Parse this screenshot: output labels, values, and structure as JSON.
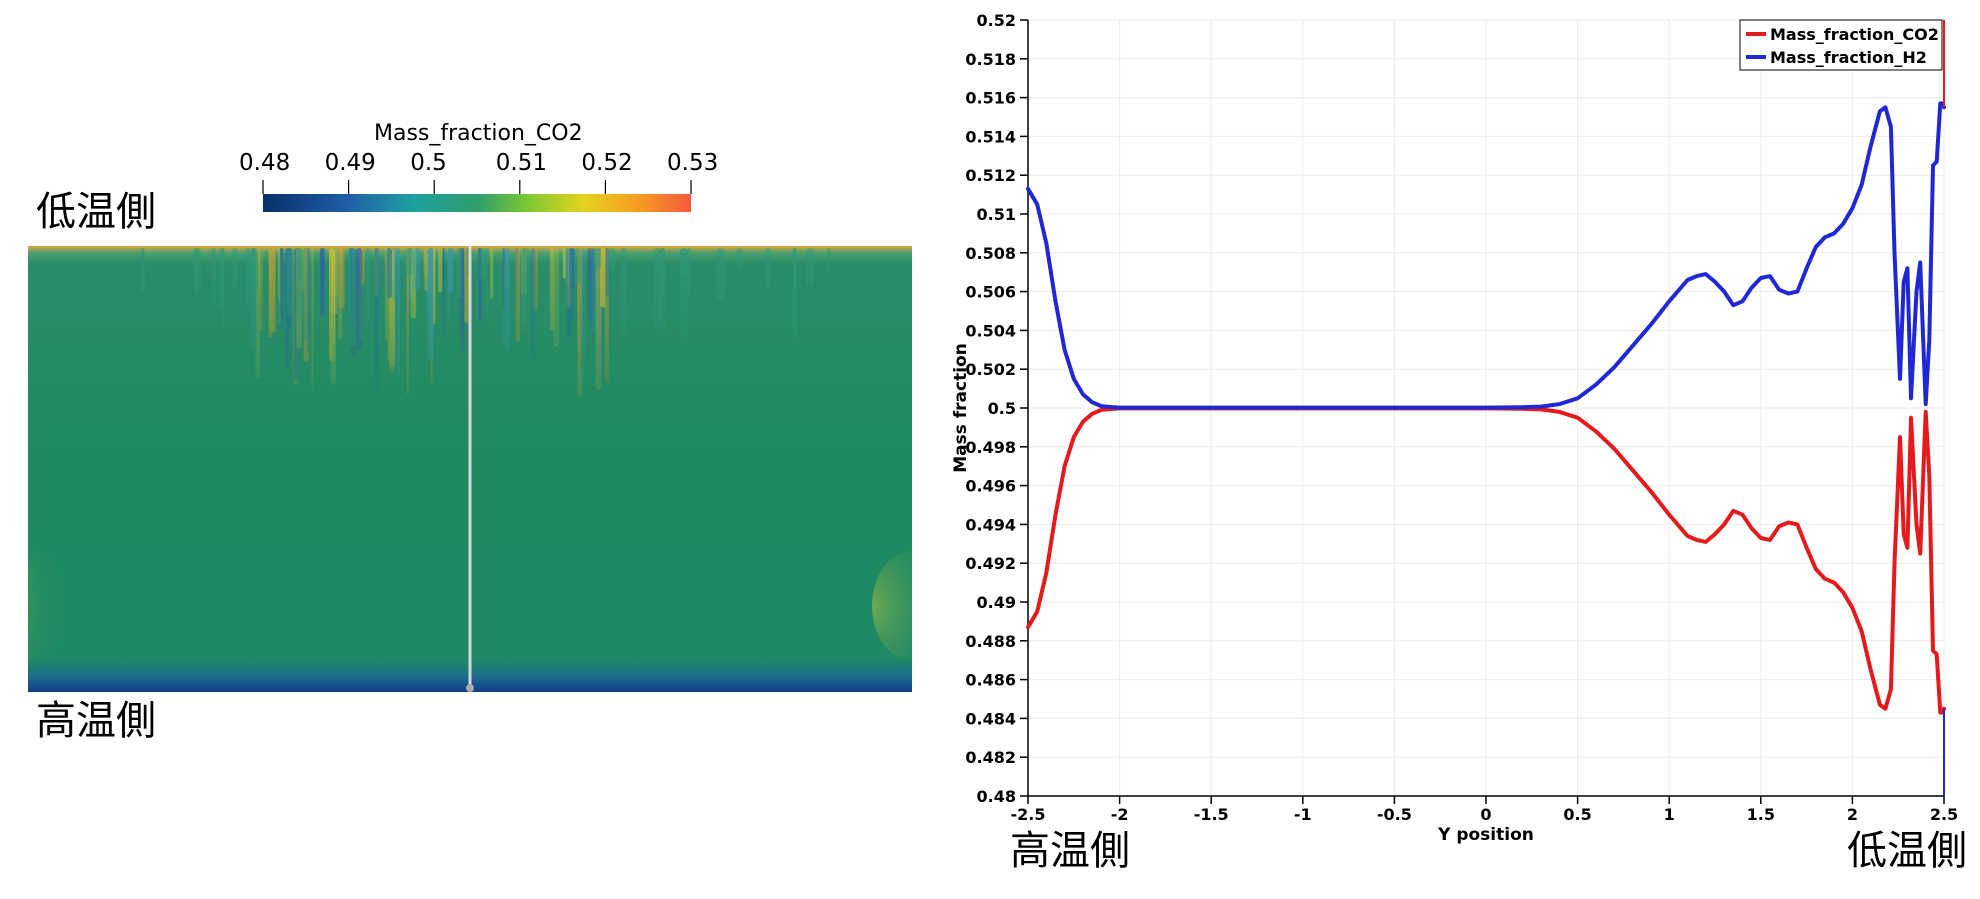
{
  "left_panel": {
    "colorbar": {
      "title": "Mass_fraction_CO2",
      "ticks": [
        "0.48",
        "0.49",
        "0.5",
        "0.51",
        "0.52",
        "0.53"
      ],
      "range": [
        0.48,
        0.53
      ],
      "colormap": [
        "#08306b",
        "#1f5fa8",
        "#1fa0a0",
        "#2e9e6a",
        "#7ec832",
        "#e6d21e",
        "#f5a020",
        "#f55a3c"
      ]
    },
    "top_label": "低温側",
    "bottom_label": "高温側",
    "colors": {
      "field": "#1e8a5e",
      "top_edge": "#e8a23a",
      "bottom_edge": "#1b3f8a",
      "probe_line": "#d8d8d8"
    }
  },
  "right_panel": {
    "left_label": "高温側",
    "right_label": "低温側"
  },
  "chart_data": {
    "type": "line",
    "xlabel": "Y position",
    "ylabel": "Mass fraction",
    "xlim": [
      -2.5,
      2.5
    ],
    "ylim": [
      0.48,
      0.52
    ],
    "xticks": [
      "-2.5",
      "-2",
      "-1.5",
      "-1",
      "-0.5",
      "0",
      "0.5",
      "1",
      "1.5",
      "2",
      "2.5"
    ],
    "yticks": [
      "0.48",
      "0.482",
      "0.484",
      "0.486",
      "0.488",
      "0.49",
      "0.492",
      "0.494",
      "0.496",
      "0.498",
      "0.5",
      "0.502",
      "0.504",
      "0.506",
      "0.508",
      "0.51",
      "0.512",
      "0.514",
      "0.516",
      "0.518",
      "0.52"
    ],
    "grid": true,
    "legend_position": "top-right",
    "series": [
      {
        "name": "Mass_fraction_CO2",
        "color": "#e41a1c",
        "x": [
          -2.5,
          -2.45,
          -2.4,
          -2.35,
          -2.3,
          -2.25,
          -2.2,
          -2.15,
          -2.1,
          -2.05,
          -2.0,
          -1.9,
          -1.5,
          -1.0,
          -0.5,
          0.0,
          0.2,
          0.3,
          0.4,
          0.5,
          0.6,
          0.7,
          0.8,
          0.9,
          1.0,
          1.1,
          1.15,
          1.2,
          1.25,
          1.3,
          1.35,
          1.4,
          1.45,
          1.5,
          1.55,
          1.6,
          1.65,
          1.7,
          1.75,
          1.8,
          1.85,
          1.9,
          1.95,
          2.0,
          2.05,
          2.1,
          2.15,
          2.18,
          2.21,
          2.23,
          2.26,
          2.28,
          2.3,
          2.32,
          2.35,
          2.37,
          2.4,
          2.42,
          2.44,
          2.46,
          2.48,
          2.49,
          2.5
        ],
        "y": [
          0.4887,
          0.4895,
          0.4915,
          0.4945,
          0.497,
          0.4985,
          0.4993,
          0.4997,
          0.4999,
          0.49995,
          0.49998,
          0.49998,
          0.49998,
          0.49998,
          0.49998,
          0.49998,
          0.49996,
          0.49993,
          0.4998,
          0.4995,
          0.4988,
          0.4979,
          0.4968,
          0.4957,
          0.4945,
          0.4934,
          0.4932,
          0.4931,
          0.4935,
          0.494,
          0.4947,
          0.4945,
          0.4938,
          0.4933,
          0.4932,
          0.4939,
          0.4941,
          0.494,
          0.4928,
          0.4917,
          0.4912,
          0.491,
          0.4905,
          0.4897,
          0.4885,
          0.4865,
          0.4847,
          0.4845,
          0.4855,
          0.492,
          0.4985,
          0.4935,
          0.4928,
          0.4995,
          0.494,
          0.4925,
          0.4998,
          0.4965,
          0.4875,
          0.4873,
          0.4843,
          0.4843,
          0.4845
        ]
      },
      {
        "name": "Mass_fraction_H2",
        "color": "#1f28d4",
        "x": [
          -2.5,
          -2.45,
          -2.4,
          -2.35,
          -2.3,
          -2.25,
          -2.2,
          -2.15,
          -2.1,
          -2.05,
          -2.0,
          -1.9,
          -1.5,
          -1.0,
          -0.5,
          0.0,
          0.2,
          0.3,
          0.4,
          0.5,
          0.6,
          0.7,
          0.8,
          0.9,
          1.0,
          1.1,
          1.15,
          1.2,
          1.25,
          1.3,
          1.35,
          1.4,
          1.45,
          1.5,
          1.55,
          1.6,
          1.65,
          1.7,
          1.75,
          1.8,
          1.85,
          1.9,
          1.95,
          2.0,
          2.05,
          2.1,
          2.15,
          2.18,
          2.21,
          2.23,
          2.26,
          2.28,
          2.3,
          2.32,
          2.35,
          2.37,
          2.4,
          2.42,
          2.44,
          2.46,
          2.48,
          2.49,
          2.5
        ],
        "y": [
          0.5113,
          0.5105,
          0.5085,
          0.5055,
          0.503,
          0.5015,
          0.5007,
          0.5003,
          0.5001,
          0.50005,
          0.50002,
          0.50002,
          0.50002,
          0.50002,
          0.50002,
          0.50002,
          0.50004,
          0.50007,
          0.5002,
          0.5005,
          0.5012,
          0.5021,
          0.5032,
          0.5043,
          0.5055,
          0.5066,
          0.5068,
          0.5069,
          0.5065,
          0.506,
          0.5053,
          0.5055,
          0.5062,
          0.5067,
          0.5068,
          0.5061,
          0.5059,
          0.506,
          0.5072,
          0.5083,
          0.5088,
          0.509,
          0.5095,
          0.5103,
          0.5115,
          0.5135,
          0.5153,
          0.5155,
          0.5145,
          0.508,
          0.5015,
          0.5065,
          0.5072,
          0.5005,
          0.506,
          0.5075,
          0.5002,
          0.5035,
          0.5125,
          0.5127,
          0.5157,
          0.5157,
          0.5155
        ]
      }
    ]
  }
}
